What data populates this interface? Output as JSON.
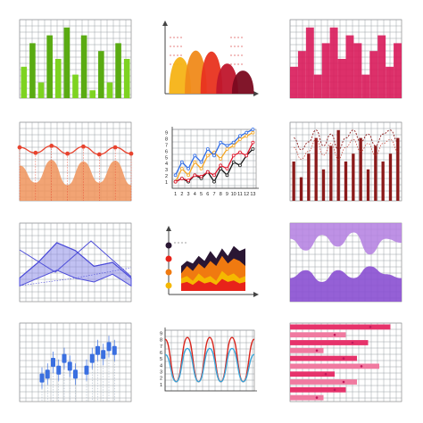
{
  "chart_data": [
    {
      "type": "bar",
      "values": [
        4,
        7,
        2,
        8,
        5,
        9,
        3,
        8,
        1,
        6,
        2,
        7,
        5
      ],
      "ylim": [
        0,
        10
      ],
      "grid": true,
      "colors": [
        "#7ed321",
        "#5aab12"
      ]
    },
    {
      "type": "area",
      "x": [
        1,
        2,
        3,
        4,
        5
      ],
      "values": [
        6.5,
        7.8,
        7.6,
        5.2,
        3.8
      ],
      "ylim": [
        0,
        10
      ],
      "grid": false,
      "axis_arrows": true,
      "colors": [
        "#f5b316",
        "#f08a1a",
        "#e8331f",
        "#c0162c",
        "#7a0a1f"
      ]
    },
    {
      "type": "bar",
      "values": [
        4,
        6,
        9,
        3,
        7,
        9,
        5,
        8,
        7,
        3,
        6,
        8,
        4,
        7
      ],
      "ylim": [
        0,
        10
      ],
      "grid": true,
      "colors": [
        "#d91a5a"
      ]
    },
    {
      "type": "area",
      "series": [
        {
          "kind": "line",
          "values": [
            6.8,
            6.1,
            7.0,
            6.0,
            6.9,
            5.9,
            6.8,
            6.0
          ]
        },
        {
          "kind": "area",
          "values": [
            4.5,
            2.3,
            5.2,
            2.0,
            5.0,
            2.3,
            5.1,
            2.0
          ]
        }
      ],
      "ylim": [
        0,
        10
      ],
      "grid": true,
      "colors": [
        "#f07a3a",
        "#e8432e"
      ]
    },
    {
      "type": "line",
      "x": [
        1,
        2,
        3,
        4,
        5,
        6,
        7,
        8,
        9,
        10,
        11,
        12,
        13
      ],
      "x_ticks": [
        "1",
        "2",
        "3",
        "4",
        "5",
        "6",
        "7",
        "8",
        "9",
        "10",
        "11",
        "12",
        "13"
      ],
      "y_ticks": [
        "1",
        "2",
        "3",
        "4",
        "5",
        "6",
        "7",
        "8",
        "9"
      ],
      "series": [
        {
          "values": [
            1,
            3,
            2,
            4,
            3,
            5,
            5.5,
            4.5,
            6,
            6.5,
            7.5,
            8,
            8.5
          ]
        },
        {
          "values": [
            2,
            4,
            3,
            5,
            4,
            6,
            5,
            7,
            6.5,
            7,
            8,
            8.5,
            9
          ]
        },
        {
          "values": [
            1,
            1.5,
            1,
            2,
            1.5,
            2.5,
            1,
            3,
            2,
            4,
            3.5,
            5,
            6
          ]
        },
        {
          "values": [
            1,
            1.5,
            1.2,
            2,
            1.8,
            2.5,
            2,
            3.5,
            3,
            5,
            5.5,
            5,
            7
          ]
        }
      ],
      "ylim": [
        0,
        9
      ],
      "grid": true,
      "colors": [
        "#f5a623",
        "#2e6be6",
        "#1a1a1a",
        "#e0182d"
      ]
    },
    {
      "type": "bar",
      "values": [
        5,
        3,
        6,
        8,
        4,
        7,
        9,
        5,
        6,
        8,
        4,
        7,
        5,
        6,
        8
      ],
      "series": [
        {
          "kind": "dashed-line",
          "values": [
            8,
            6.5,
            7.5,
            9,
            7,
            8.5,
            6.5,
            8,
            9,
            7.5,
            8.5,
            7,
            8.5,
            9,
            7.5
          ]
        }
      ],
      "ylim": [
        0,
        10
      ],
      "grid": true,
      "colors": [
        "#8b1a1a"
      ]
    },
    {
      "type": "area",
      "series": [
        {
          "values": [
            3,
            5,
            7.5,
            6.5,
            4.5,
            5,
            3
          ]
        },
        {
          "values": [
            2,
            3,
            4,
            3,
            2.5,
            3.5,
            2
          ]
        }
      ],
      "ylim": [
        0,
        10
      ],
      "grid": true,
      "colors": [
        "#4c4cd9",
        "#8e8ee8"
      ]
    },
    {
      "type": "area",
      "x": [
        1,
        2,
        3,
        4,
        5,
        6,
        7,
        8,
        9,
        10,
        11,
        12
      ],
      "series": [
        {
          "values": [
            5,
            6,
            5.5,
            7,
            6,
            8,
            6.5,
            8.5,
            7,
            9,
            8,
            8.5
          ]
        },
        {
          "values": [
            3.5,
            5,
            4,
            5.5,
            4.5,
            6,
            5,
            7,
            5.5,
            6.5,
            6,
            5
          ]
        },
        {
          "values": [
            2.5,
            3,
            2,
            3.5,
            2.5,
            3,
            2,
            4,
            3,
            3.5,
            2.5,
            3
          ]
        }
      ],
      "ylim": [
        0,
        10
      ],
      "grid": false,
      "axis_arrows": true,
      "colors": [
        "#2a1633",
        "#f07a10",
        "#f5b800",
        "#e8231a"
      ]
    },
    {
      "type": "area",
      "series": [
        {
          "values": [
            8,
            6.5,
            8.5,
            7,
            8.8,
            6,
            8,
            7.5
          ]
        },
        {
          "values": [
            3,
            4,
            2.5,
            4,
            3,
            4.5,
            3.5,
            3
          ]
        }
      ],
      "ylim": [
        0,
        10
      ],
      "grid": true,
      "colors": [
        "#b37ee0",
        "#8a4fd1"
      ]
    },
    {
      "type": "scatter",
      "values": [
        [
          2,
          3
        ],
        [
          2.5,
          3.5
        ],
        [
          3.5,
          4
        ],
        [
          3,
          5
        ],
        [
          4,
          5.5
        ],
        [
          4.5,
          4.5
        ],
        [
          5,
          3.5
        ],
        [
          6,
          4
        ],
        [
          6.5,
          5.5
        ],
        [
          7,
          6.5
        ],
        [
          7.5,
          6
        ],
        [
          8,
          7
        ],
        [
          8.5,
          6.5
        ]
      ],
      "ylim": [
        0,
        10
      ],
      "grid": true,
      "colors": [
        "#3a6fe0"
      ]
    },
    {
      "type": "line",
      "y_ticks": [
        "1",
        "2",
        "3",
        "4",
        "5",
        "6",
        "7",
        "8",
        "9"
      ],
      "series": [
        {
          "values": [
            8.5,
            1.5,
            8.8,
            1.5,
            8.8,
            1.5,
            8.8,
            1.5,
            8.5
          ]
        },
        {
          "values": [
            6,
            1.5,
            7,
            1.5,
            7,
            1.5,
            7,
            1.5,
            6
          ]
        }
      ],
      "ylim": [
        0,
        10
      ],
      "grid": true,
      "colors": [
        "#d9231a",
        "#3aa6d9"
      ]
    },
    {
      "type": "bar",
      "orientation": "horizontal",
      "values": [
        9,
        5,
        7,
        3,
        6,
        8,
        4,
        6,
        5,
        3
      ],
      "ylim": [
        0,
        10
      ],
      "grid": true,
      "colors": [
        "#e6336b",
        "#f07aa0"
      ]
    }
  ]
}
